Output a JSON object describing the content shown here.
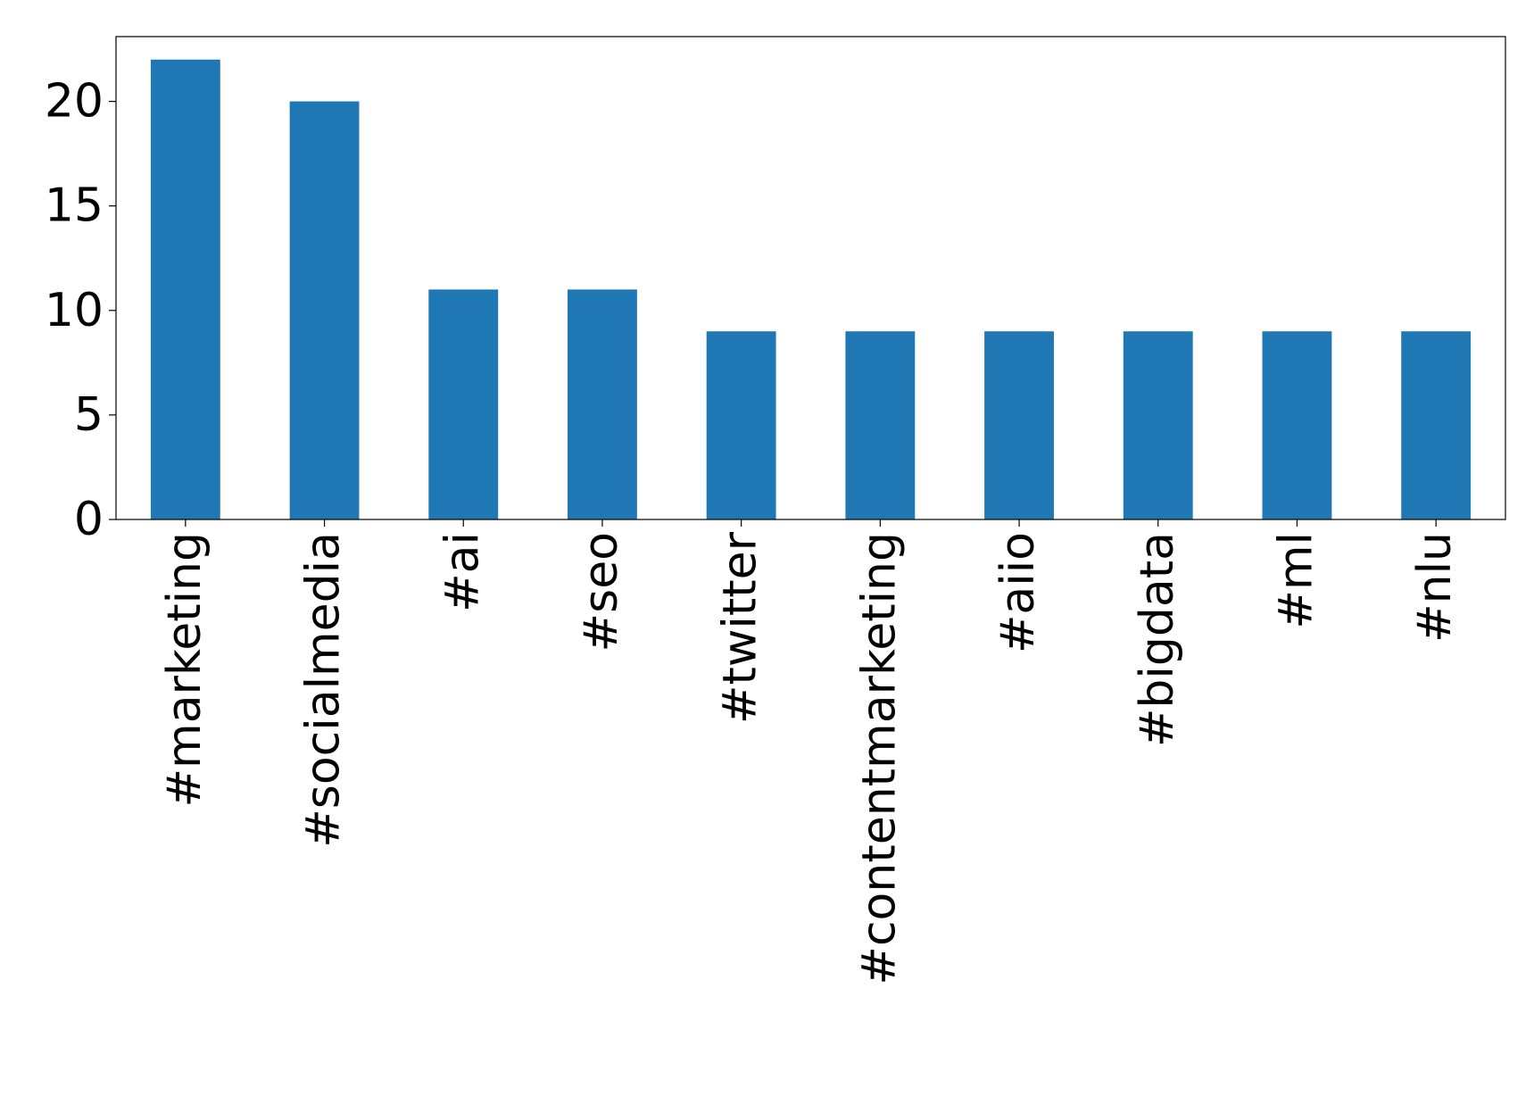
{
  "chart_data": {
    "type": "bar",
    "categories": [
      "#marketing",
      "#socialmedia",
      "#ai",
      "#seo",
      "#twitter",
      "#contentmarketing",
      "#aiio",
      "#bigdata",
      "#ml",
      "#nlu"
    ],
    "values": [
      22,
      20,
      11,
      11,
      9,
      9,
      9,
      9,
      9,
      9
    ],
    "color": "#1f77b4",
    "ylim": [
      0,
      23.1
    ],
    "yticks": [
      0,
      5,
      10,
      15,
      20
    ],
    "grid": false
  }
}
